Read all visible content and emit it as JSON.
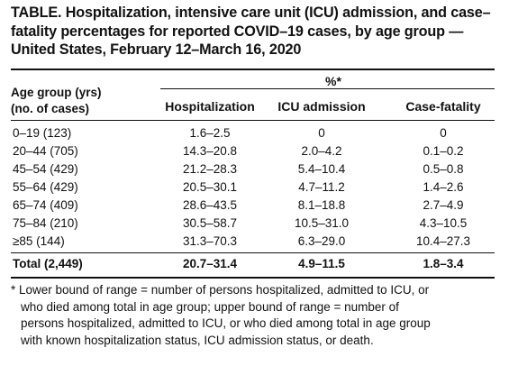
{
  "title_lines": [
    "TABLE. Hospitalization, intensive care unit (ICU) admission, and case–",
    "fatality percentages for reported COVID–19 cases, by age group —",
    "United States, February 12–March 16, 2020"
  ],
  "header": {
    "group_label": "%*",
    "row_header_line1": "Age group (yrs)",
    "row_header_line2": "(no. of cases)",
    "columns": [
      "Hospitalization",
      "ICU admission",
      "Case-fatality"
    ]
  },
  "rows": [
    {
      "age": "0–19 (123)",
      "hosp": "1.6–2.5",
      "icu": "0",
      "cfr": "0"
    },
    {
      "age": "20–44 (705)",
      "hosp": "14.3–20.8",
      "icu": "2.0–4.2",
      "cfr": "0.1–0.2"
    },
    {
      "age": "45–54 (429)",
      "hosp": "21.2–28.3",
      "icu": "5.4–10.4",
      "cfr": "0.5–0.8"
    },
    {
      "age": "55–64 (429)",
      "hosp": "20.5–30.1",
      "icu": "4.7–11.2",
      "cfr": "1.4–2.6"
    },
    {
      "age": "65–74 (409)",
      "hosp": "28.6–43.5",
      "icu": "8.1–18.8",
      "cfr": "2.7–4.9"
    },
    {
      "age": "75–84 (210)",
      "hosp": "30.5–58.7",
      "icu": "10.5–31.0",
      "cfr": "4.3–10.5"
    },
    {
      "age": "≥85 (144)",
      "hosp": "31.3–70.3",
      "icu": "6.3–29.0",
      "cfr": "10.4–27.3"
    }
  ],
  "total": {
    "age": "Total (2,449)",
    "hosp": "20.7–31.4",
    "icu": "4.9–11.5",
    "cfr": "1.8–3.4"
  },
  "footnote_lines": [
    "* Lower bound of range = number of persons hospitalized, admitted to ICU, or",
    "who died among total in age group; upper bound of range = number of",
    "persons hospitalized, admitted to ICU, or who died among total in age group",
    "with known hospitalization status, ICU admission status, or death."
  ]
}
